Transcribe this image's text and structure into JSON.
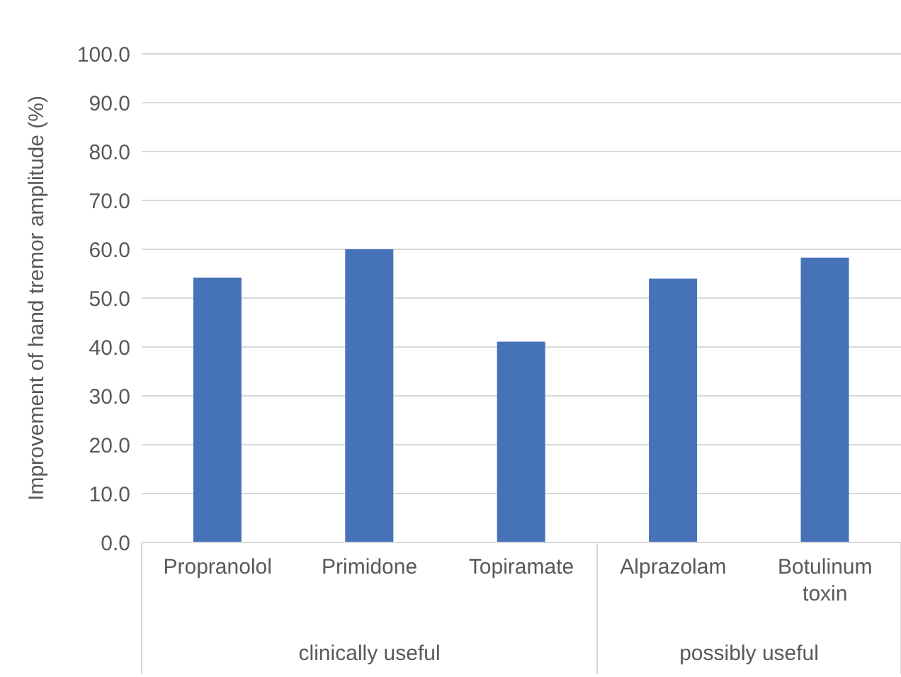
{
  "chart_data": {
    "type": "bar",
    "ylabel": "Improvement of hand tremor amplitude (%)",
    "categories": [
      "Propranolol",
      "Primidone",
      "Topiramate",
      "Alprazolam",
      "Botulinum toxin"
    ],
    "values": [
      54.2,
      60,
      41.1,
      54,
      58.3
    ],
    "color": "#4672b8",
    "ylim": [
      0,
      100
    ],
    "yticks": [
      {
        "value": 0,
        "label": "0.0"
      },
      {
        "value": 10,
        "label": "10.0"
      },
      {
        "value": 20,
        "label": "20.0"
      },
      {
        "value": 30,
        "label": "30.0"
      },
      {
        "value": 40,
        "label": "40.0"
      },
      {
        "value": 50,
        "label": "50.0"
      },
      {
        "value": 60,
        "label": "60.0"
      },
      {
        "value": 70,
        "label": "70.0"
      },
      {
        "value": 80,
        "label": "80.0"
      },
      {
        "value": 90,
        "label": "90.0"
      },
      {
        "value": 100,
        "label": "100.0"
      }
    ],
    "grid": "y",
    "annotations": [
      "clinically useful",
      "possibly useful"
    ]
  }
}
